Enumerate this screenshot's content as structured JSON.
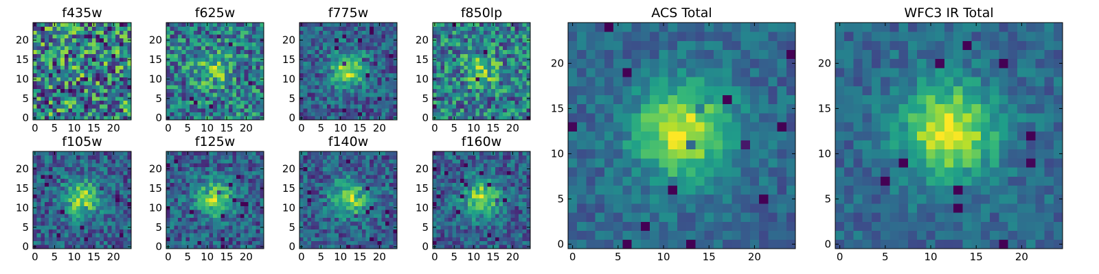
{
  "chart_data": [
    {
      "type": "heatmap",
      "title": "f435w",
      "xticks": [
        0,
        5,
        10,
        15,
        20
      ],
      "yticks": [
        0,
        5,
        10,
        15,
        20
      ],
      "grid": [
        25,
        25
      ],
      "xlim": [
        0,
        24
      ],
      "ylim": [
        0,
        24
      ],
      "colormap": "viridis",
      "central_source": "none",
      "seed": 11
    },
    {
      "type": "heatmap",
      "title": "f625w",
      "xticks": [
        0,
        5,
        10,
        15,
        20
      ],
      "yticks": [
        0,
        5,
        10,
        15,
        20
      ],
      "grid": [
        25,
        25
      ],
      "xlim": [
        0,
        24
      ],
      "ylim": [
        0,
        24
      ],
      "colormap": "viridis",
      "central_source": "faint",
      "seed": 23
    },
    {
      "type": "heatmap",
      "title": "f775w",
      "xticks": [
        0,
        5,
        10,
        15,
        20
      ],
      "yticks": [
        0,
        5,
        10,
        15,
        20
      ],
      "grid": [
        25,
        25
      ],
      "xlim": [
        0,
        24
      ],
      "ylim": [
        0,
        24
      ],
      "colormap": "viridis",
      "central_source": "moderate",
      "seed": 37
    },
    {
      "type": "heatmap",
      "title": "f850lp",
      "xticks": [
        0,
        5,
        10,
        15,
        20
      ],
      "yticks": [
        0,
        5,
        10,
        15,
        20
      ],
      "grid": [
        25,
        25
      ],
      "xlim": [
        0,
        24
      ],
      "ylim": [
        0,
        24
      ],
      "colormap": "viridis",
      "central_source": "faint",
      "seed": 41
    },
    {
      "type": "heatmap",
      "title": "f105w",
      "xticks": [
        0,
        5,
        10,
        15,
        20
      ],
      "yticks": [
        0,
        5,
        10,
        15,
        20
      ],
      "grid": [
        25,
        25
      ],
      "xlim": [
        0,
        24
      ],
      "ylim": [
        0,
        24
      ],
      "colormap": "viridis",
      "central_source": "moderate",
      "seed": 53
    },
    {
      "type": "heatmap",
      "title": "f125w",
      "xticks": [
        0,
        5,
        10,
        15,
        20
      ],
      "yticks": [
        0,
        5,
        10,
        15,
        20
      ],
      "grid": [
        25,
        25
      ],
      "xlim": [
        0,
        24
      ],
      "ylim": [
        0,
        24
      ],
      "colormap": "viridis",
      "central_source": "moderate",
      "seed": 67
    },
    {
      "type": "heatmap",
      "title": "f140w",
      "xticks": [
        0,
        5,
        10,
        15,
        20
      ],
      "yticks": [
        0,
        5,
        10,
        15,
        20
      ],
      "grid": [
        25,
        25
      ],
      "xlim": [
        0,
        24
      ],
      "ylim": [
        0,
        24
      ],
      "colormap": "viridis",
      "central_source": "moderate",
      "seed": 71
    },
    {
      "type": "heatmap",
      "title": "f160w",
      "xticks": [
        0,
        5,
        10,
        15,
        20
      ],
      "yticks": [
        0,
        5,
        10,
        15,
        20
      ],
      "grid": [
        25,
        25
      ],
      "xlim": [
        0,
        24
      ],
      "ylim": [
        0,
        24
      ],
      "colormap": "viridis",
      "central_source": "moderate",
      "seed": 83
    },
    {
      "type": "heatmap",
      "title": "ACS Total",
      "xticks": [
        0,
        5,
        10,
        15,
        20
      ],
      "yticks": [
        0,
        5,
        10,
        15,
        20
      ],
      "grid": [
        25,
        25
      ],
      "xlim": [
        0,
        24
      ],
      "ylim": [
        0,
        24
      ],
      "colormap": "viridis",
      "central_source": "strong",
      "seed": 97
    },
    {
      "type": "heatmap",
      "title": "WFC3 IR Total",
      "xticks": [
        0,
        5,
        10,
        15,
        20
      ],
      "yticks": [
        0,
        5,
        10,
        15,
        20
      ],
      "grid": [
        25,
        25
      ],
      "xlim": [
        0,
        24
      ],
      "ylim": [
        0,
        24
      ],
      "colormap": "viridis",
      "central_source": "strong",
      "seed": 101
    }
  ]
}
